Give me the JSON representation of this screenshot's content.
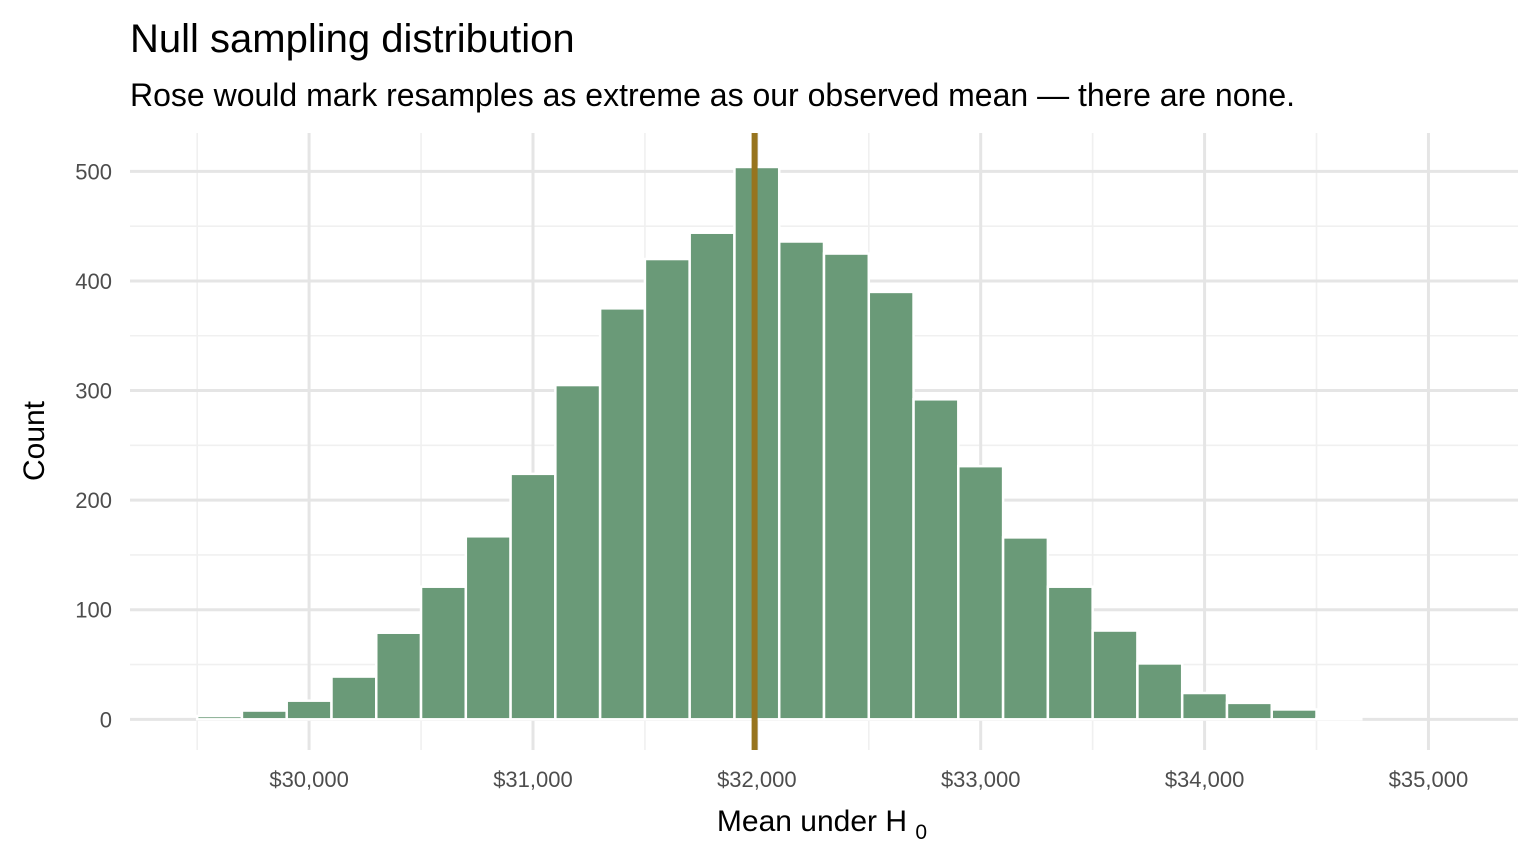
{
  "chart_data": {
    "type": "bar",
    "title": "Null sampling distribution",
    "subtitle": "Rose would mark resamples as extreme as our observed mean — there are none.",
    "xlabel": {
      "text": "Mean under ",
      "symbol": "H",
      "subscript": "0"
    },
    "ylabel": "Count",
    "xlim": [
      29200,
      35400
    ],
    "ylim": [
      -28,
      535
    ],
    "x_ticks": [
      30000,
      31000,
      32000,
      33000,
      34000,
      35000
    ],
    "x_tick_labels": [
      "$30,000",
      "$31,000",
      "$32,000",
      "$33,000",
      "$34,000",
      "$35,000"
    ],
    "y_ticks": [
      0,
      100,
      200,
      300,
      400,
      500
    ],
    "y_tick_labels": [
      "0",
      "100",
      "200",
      "300",
      "400",
      "500"
    ],
    "grid": true,
    "bin_width": 200,
    "bins": [
      {
        "x": 29400,
        "count": 0
      },
      {
        "x": 29600,
        "count": 3
      },
      {
        "x": 29800,
        "count": 8
      },
      {
        "x": 30000,
        "count": 17
      },
      {
        "x": 30200,
        "count": 39
      },
      {
        "x": 30400,
        "count": 79
      },
      {
        "x": 30600,
        "count": 121
      },
      {
        "x": 30800,
        "count": 167
      },
      {
        "x": 31000,
        "count": 224
      },
      {
        "x": 31200,
        "count": 305
      },
      {
        "x": 31400,
        "count": 375
      },
      {
        "x": 31600,
        "count": 420
      },
      {
        "x": 31800,
        "count": 444
      },
      {
        "x": 32000,
        "count": 504
      },
      {
        "x": 32200,
        "count": 436
      },
      {
        "x": 32400,
        "count": 425
      },
      {
        "x": 32600,
        "count": 390
      },
      {
        "x": 32800,
        "count": 292
      },
      {
        "x": 33000,
        "count": 231
      },
      {
        "x": 33200,
        "count": 166
      },
      {
        "x": 33400,
        "count": 121
      },
      {
        "x": 33600,
        "count": 81
      },
      {
        "x": 33800,
        "count": 51
      },
      {
        "x": 34000,
        "count": 24
      },
      {
        "x": 34200,
        "count": 15
      },
      {
        "x": 34400,
        "count": 9
      },
      {
        "x": 34600,
        "count": 1
      },
      {
        "x": 34800,
        "count": 0
      },
      {
        "x": 35000,
        "count": 0
      }
    ],
    "observed_mean": 31990,
    "colors": {
      "bar_fill": "#6a9a78",
      "bar_stroke": "#ffffff",
      "observed_line": "#97741e",
      "grid_major": "#e5e5e5",
      "grid_minor": "#f0f0f0"
    }
  }
}
